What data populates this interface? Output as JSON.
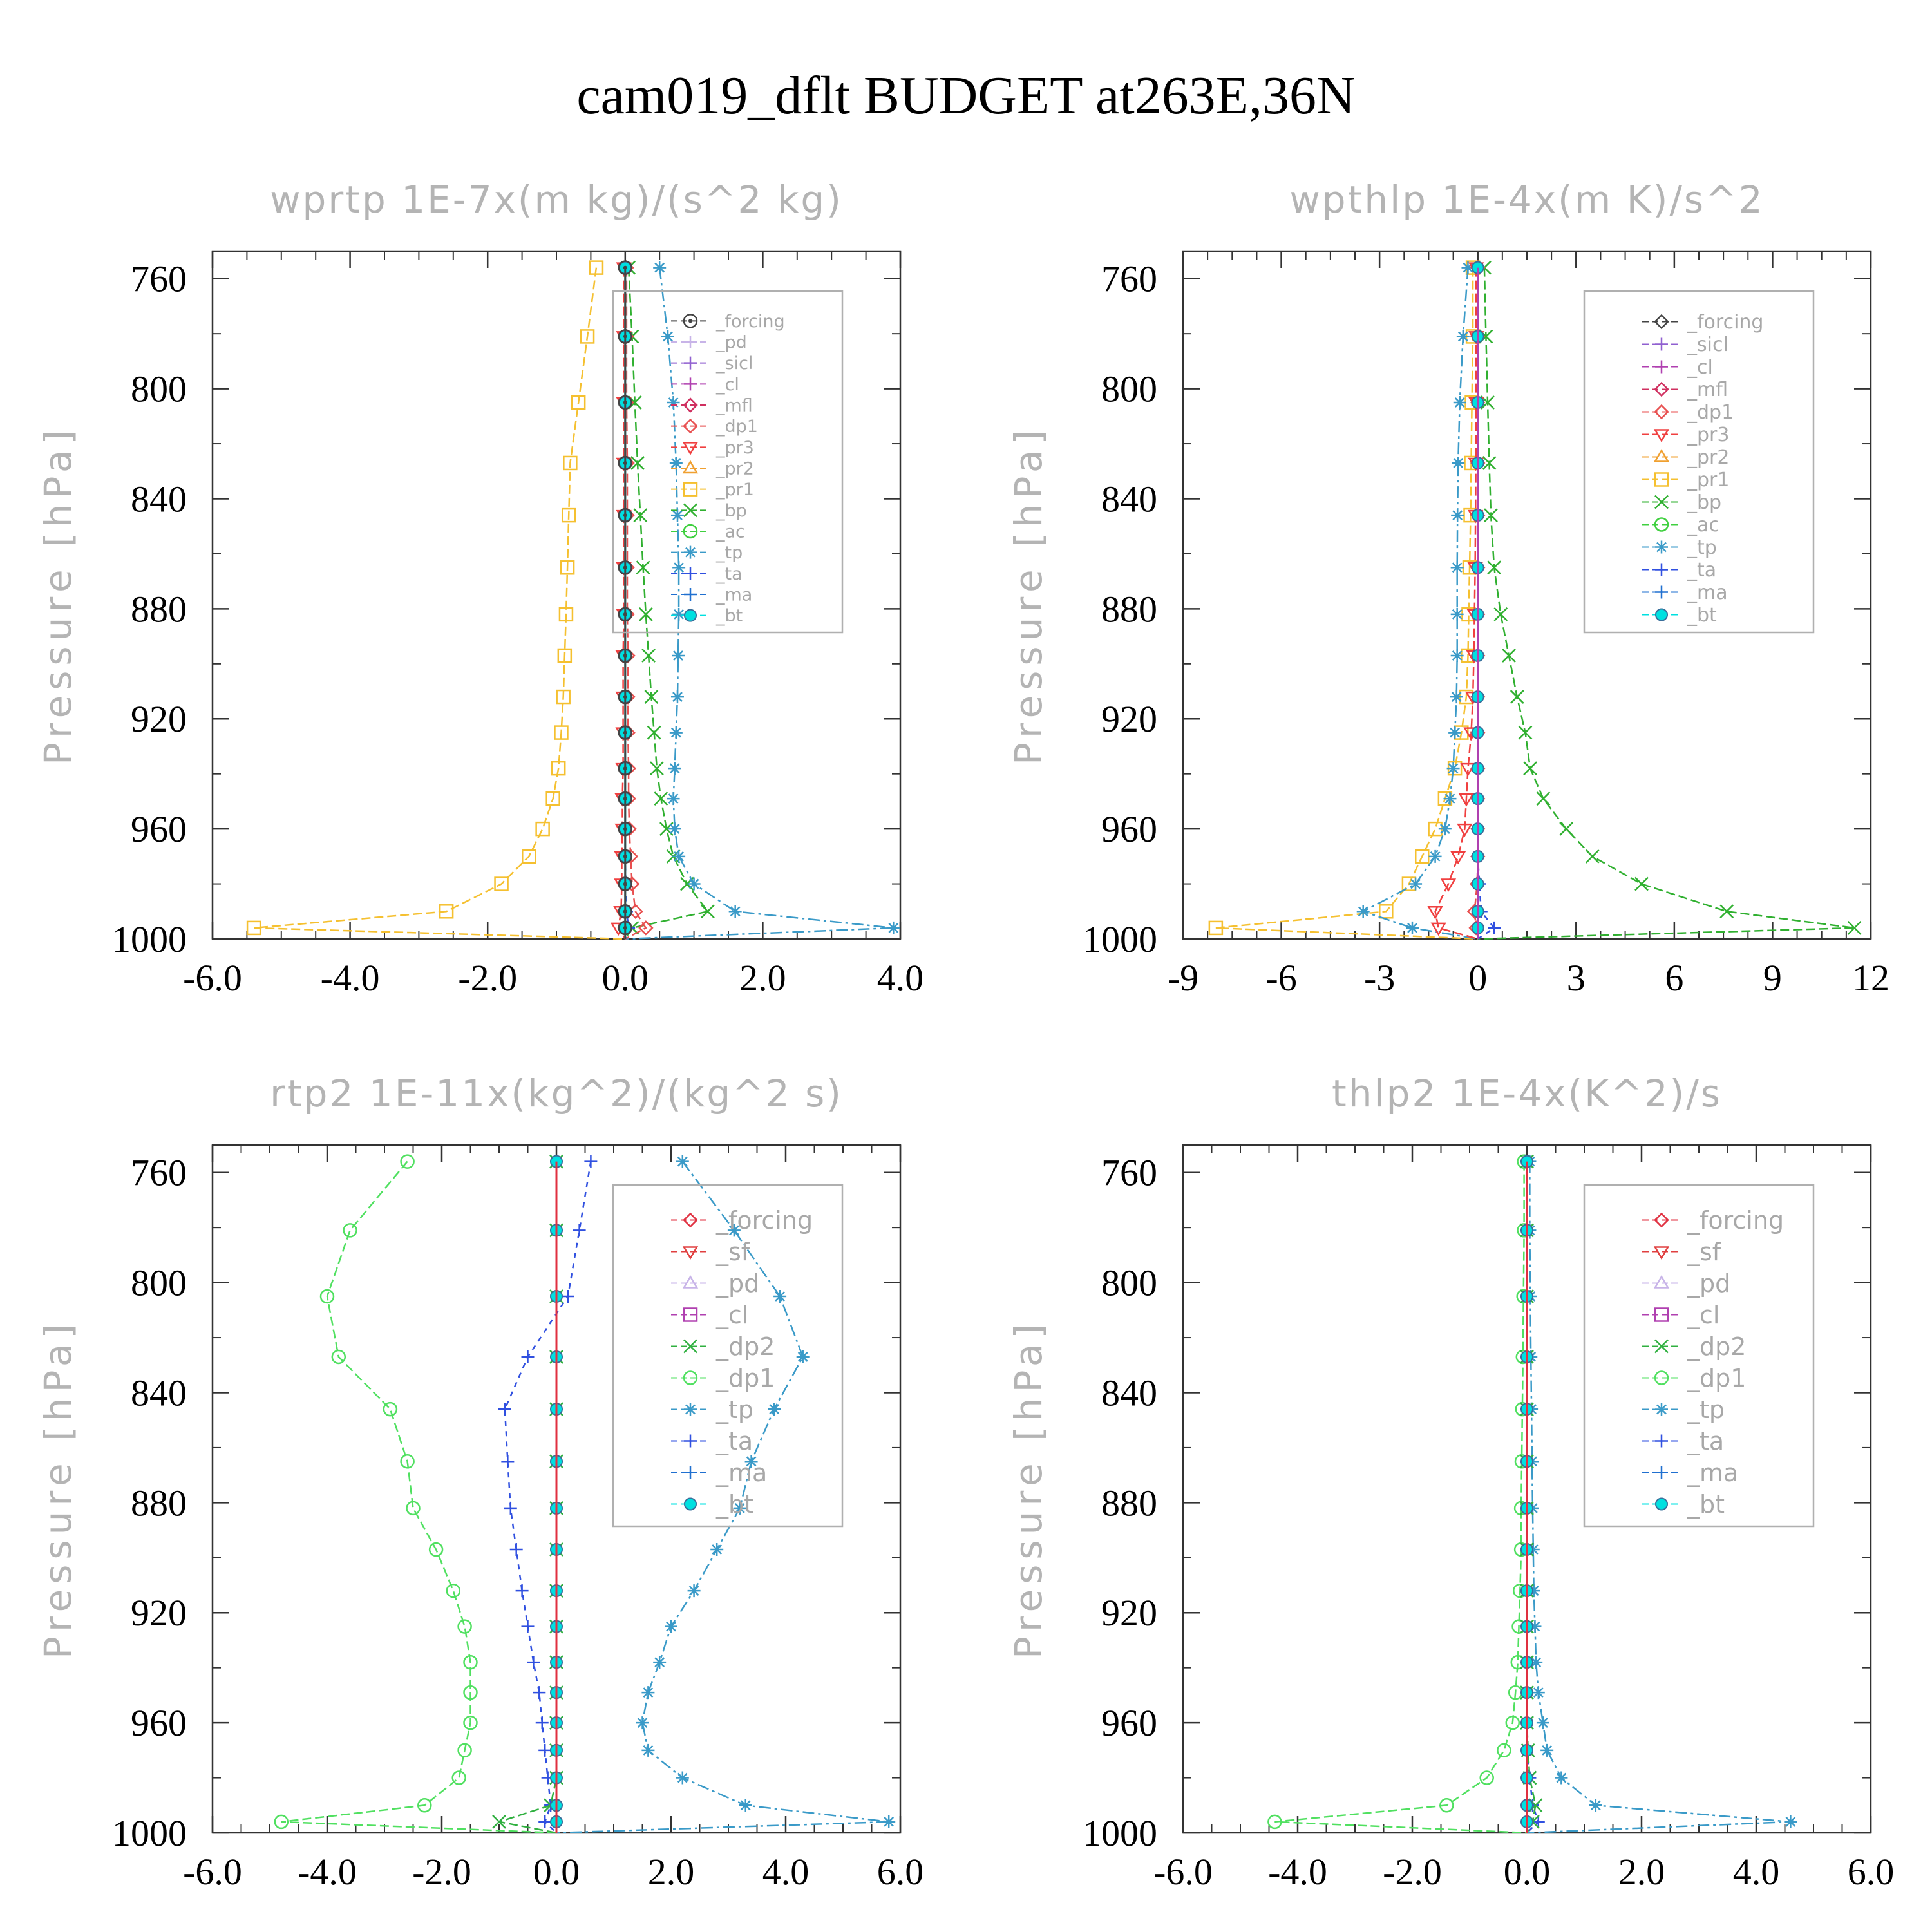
{
  "title": "cam019_dflt  BUDGET at263E,36N",
  "colors": {
    "forcing": "#444444",
    "pd": "#c8b4e8",
    "sicl": "#9060d0",
    "cl": "#b040b0",
    "mfl": "#d03060",
    "dp1": "#e85050",
    "pr3": "#f04040",
    "pr2": "#f0a030",
    "pr1": "#f5c030",
    "bp": "#30b030",
    "ac": "#40d040",
    "tp": "#3a9ac8",
    "ta": "#3050e0",
    "ma": "#2070d0",
    "bt": "#00e0e0",
    "sf": "#e04040",
    "dp2": "#30b040",
    "rtp2_dp1": "#50e060",
    "rtp2_forcing": "#e03040"
  },
  "chart_data": [
    {
      "type": "line",
      "title": "wprtp  1E-7x(m kg)/(s^2 kg)",
      "ylabel": "Pressure [hPa]",
      "xlim": [
        -6,
        4
      ],
      "ylim": [
        1000,
        750
      ],
      "xticks": [
        "-6.0",
        "-4.0",
        "-2.0",
        "0.0",
        "2.0",
        "4.0"
      ],
      "xtick_values": [
        -6,
        -4,
        -2,
        0,
        2,
        4
      ],
      "yticks": [
        "760",
        "800",
        "840",
        "880",
        "920",
        "960",
        "1000"
      ],
      "ytick_values": [
        760,
        800,
        840,
        880,
        920,
        960,
        1000
      ],
      "levels": [
        756,
        781,
        805,
        827,
        846,
        865,
        882,
        897,
        912,
        925,
        938,
        949,
        960,
        970,
        980,
        990,
        996
      ],
      "legend_labels": [
        "_forcing",
        "_pd",
        "_sicl",
        "_cl",
        "_mfl",
        "_dp1",
        "_pr3",
        "_pr2",
        "_pr1",
        "_bp",
        "_ac",
        "_tp",
        "_ta",
        "_ma",
        "_bt"
      ],
      "series": [
        {
          "name": "_pr1",
          "color": "pr1",
          "marker": "square",
          "dash": "14,6",
          "x": [
            -0.42,
            -0.55,
            -0.68,
            -0.8,
            -0.82,
            -0.84,
            -0.86,
            -0.88,
            -0.9,
            -0.93,
            -0.97,
            -1.05,
            -1.2,
            -1.4,
            -1.8,
            -2.6,
            -5.4
          ]
        },
        {
          "name": "_bp",
          "color": "bp",
          "marker": "x",
          "dash": "14,6",
          "x": [
            0.05,
            0.1,
            0.14,
            0.18,
            0.22,
            0.26,
            0.3,
            0.34,
            0.38,
            0.42,
            0.46,
            0.52,
            0.6,
            0.7,
            0.9,
            1.2,
            0.1
          ]
        },
        {
          "name": "_tp",
          "color": "tp",
          "marker": "star",
          "dash": "18,6,4,6",
          "x": [
            0.5,
            0.62,
            0.7,
            0.74,
            0.76,
            0.78,
            0.78,
            0.77,
            0.76,
            0.74,
            0.72,
            0.7,
            0.72,
            0.78,
            1.0,
            1.6,
            3.9
          ]
        },
        {
          "name": "_dp1",
          "color": "dp1",
          "marker": "diamond",
          "dash": "14,6",
          "x": [
            0.02,
            0.02,
            0.02,
            0.03,
            0.03,
            0.03,
            0.03,
            0.04,
            0.04,
            0.04,
            0.05,
            0.05,
            0.06,
            0.08,
            0.1,
            0.15,
            0.3
          ]
        },
        {
          "name": "_pr3",
          "color": "pr3",
          "marker": "triangledown",
          "dash": "14,6",
          "x": [
            -0.02,
            -0.02,
            -0.02,
            -0.02,
            -0.02,
            -0.02,
            -0.02,
            -0.03,
            -0.03,
            -0.03,
            -0.03,
            -0.04,
            -0.04,
            -0.05,
            -0.05,
            -0.06,
            -0.1
          ]
        },
        {
          "name": "_ta",
          "color": "ta",
          "marker": "plus",
          "dash": "8,8",
          "x": [
            0,
            0,
            0,
            0,
            0,
            0,
            0,
            0,
            0,
            0,
            0,
            0,
            0,
            0,
            0.01,
            0.02,
            0.05
          ]
        },
        {
          "name": "_bt",
          "color": "bt",
          "marker": "dot",
          "dash": "",
          "x": [
            0,
            0,
            0,
            0,
            0,
            0,
            0,
            0,
            0,
            0,
            0,
            0,
            0,
            0,
            0,
            0,
            0
          ]
        },
        {
          "name": "_forcing",
          "color": "forcing",
          "marker": "circledot",
          "dash": "",
          "x": [
            0,
            0,
            0,
            0,
            0,
            0,
            0,
            0,
            0,
            0,
            0,
            0,
            0,
            0,
            0,
            0,
            0
          ]
        }
      ]
    },
    {
      "type": "line",
      "title": "wpthlp  1E-4x(m K)/s^2",
      "ylabel": "Pressure [hPa]",
      "xlim": [
        -9,
        12
      ],
      "ylim": [
        1000,
        750
      ],
      "xticks": [
        "-9",
        "-6",
        "-3",
        "0",
        "3",
        "6",
        "9",
        "12"
      ],
      "xtick_values": [
        -9,
        -6,
        -3,
        0,
        3,
        6,
        9,
        12
      ],
      "yticks": [
        "760",
        "800",
        "840",
        "880",
        "920",
        "960",
        "1000"
      ],
      "ytick_values": [
        760,
        800,
        840,
        880,
        920,
        960,
        1000
      ],
      "levels": [
        756,
        781,
        805,
        827,
        846,
        865,
        882,
        897,
        912,
        925,
        938,
        949,
        960,
        970,
        980,
        990,
        996
      ],
      "legend_labels": [
        "_forcing",
        "_sicl",
        "_cl",
        "_mfl",
        "_dp1",
        "_pr3",
        "_pr2",
        "_pr1",
        "_bp",
        "_ac",
        "_tp",
        "_ta",
        "_ma",
        "_bt"
      ],
      "series": [
        {
          "name": "_pr1",
          "color": "pr1",
          "marker": "square",
          "dash": "14,6",
          "x": [
            -0.15,
            -0.15,
            -0.18,
            -0.2,
            -0.22,
            -0.25,
            -0.28,
            -0.3,
            -0.35,
            -0.5,
            -0.7,
            -1.0,
            -1.3,
            -1.7,
            -2.1,
            -2.8,
            -8.0
          ]
        },
        {
          "name": "_bp",
          "color": "bp",
          "marker": "x",
          "dash": "14,6",
          "x": [
            0.2,
            0.25,
            0.3,
            0.35,
            0.4,
            0.5,
            0.7,
            0.95,
            1.2,
            1.45,
            1.6,
            2.0,
            2.7,
            3.5,
            5.0,
            7.6,
            11.5
          ]
        },
        {
          "name": "_tp",
          "color": "tp",
          "marker": "star",
          "dash": "18,6,4,6",
          "x": [
            -0.3,
            -0.45,
            -0.55,
            -0.6,
            -0.62,
            -0.63,
            -0.63,
            -0.63,
            -0.65,
            -0.7,
            -0.75,
            -0.85,
            -1.0,
            -1.3,
            -1.9,
            -3.5,
            -2.0
          ]
        },
        {
          "name": "_pr3",
          "color": "pr3",
          "marker": "triangledown",
          "dash": "14,6",
          "x": [
            -0.05,
            -0.05,
            -0.05,
            -0.06,
            -0.07,
            -0.08,
            -0.1,
            -0.12,
            -0.15,
            -0.2,
            -0.3,
            -0.35,
            -0.4,
            -0.6,
            -0.9,
            -1.3,
            -1.2
          ]
        },
        {
          "name": "_dp1",
          "color": "dp1",
          "marker": "diamond",
          "dash": "14,6",
          "x": [
            0,
            0,
            0,
            0,
            0,
            0,
            0,
            0,
            0,
            0,
            0,
            0,
            0,
            0,
            -0.02,
            -0.1,
            -0.05
          ]
        },
        {
          "name": "_ta",
          "color": "ta",
          "marker": "plus",
          "dash": "8,8",
          "x": [
            0,
            0,
            0,
            0,
            0,
            0,
            0,
            0,
            0,
            0,
            0,
            0,
            0,
            0,
            0.05,
            0.1,
            0.5
          ]
        },
        {
          "name": "_bt",
          "color": "bt",
          "marker": "dot",
          "dash": "",
          "x": [
            0,
            0,
            0,
            0,
            0,
            0,
            0,
            0,
            0,
            0,
            0,
            0,
            0,
            0,
            0,
            0,
            0
          ]
        },
        {
          "name": "_cl",
          "color": "cl",
          "marker": "none",
          "dash": "",
          "x": [
            0,
            0,
            0,
            0,
            0,
            0,
            0,
            0,
            0,
            0,
            0,
            0,
            0,
            0,
            0,
            0,
            0
          ]
        }
      ]
    },
    {
      "type": "line",
      "title": "rtp2  1E-11x(kg^2)/(kg^2 s)",
      "ylabel": "Pressure [hPa]",
      "xlim": [
        -6,
        6
      ],
      "ylim": [
        1000,
        750
      ],
      "xticks": [
        "-6.0",
        "-4.0",
        "-2.0",
        "0.0",
        "2.0",
        "4.0",
        "6.0"
      ],
      "xtick_values": [
        -6,
        -4,
        -2,
        0,
        2,
        4,
        6
      ],
      "yticks": [
        "760",
        "800",
        "840",
        "880",
        "920",
        "960",
        "1000"
      ],
      "ytick_values": [
        760,
        800,
        840,
        880,
        920,
        960,
        1000
      ],
      "levels": [
        756,
        781,
        805,
        827,
        846,
        865,
        882,
        897,
        912,
        925,
        938,
        949,
        960,
        970,
        980,
        990,
        996
      ],
      "legend_labels": [
        "_forcing",
        "_sf",
        "_pd",
        "_cl",
        "_dp2",
        "_dp1",
        "_tp",
        "_ta",
        "_ma",
        "_bt"
      ],
      "series": [
        {
          "name": "_dp1",
          "color": "rtp2_dp1",
          "marker": "circle",
          "dash": "14,6",
          "x": [
            -2.6,
            -3.6,
            -4.0,
            -3.8,
            -2.9,
            -2.6,
            -2.5,
            -2.1,
            -1.8,
            -1.6,
            -1.5,
            -1.5,
            -1.5,
            -1.6,
            -1.7,
            -2.3,
            -4.8
          ]
        },
        {
          "name": "_tp",
          "color": "tp",
          "marker": "star",
          "dash": "18,6,4,6",
          "x": [
            2.2,
            3.1,
            3.9,
            4.3,
            3.8,
            3.4,
            3.2,
            2.8,
            2.4,
            2.0,
            1.8,
            1.6,
            1.5,
            1.6,
            2.2,
            3.3,
            5.8
          ]
        },
        {
          "name": "_ta",
          "color": "ta",
          "marker": "plus",
          "dash": "8,8",
          "x": [
            0.6,
            0.4,
            0.2,
            -0.5,
            -0.9,
            -0.85,
            -0.8,
            -0.7,
            -0.6,
            -0.5,
            -0.4,
            -0.3,
            -0.25,
            -0.2,
            -0.15,
            -0.1,
            -0.2
          ]
        },
        {
          "name": "_dp2",
          "color": "dp2",
          "marker": "x",
          "dash": "14,6",
          "x": [
            0,
            0,
            0,
            0,
            0,
            0,
            0,
            0,
            0,
            0,
            0,
            0,
            0,
            0,
            0,
            -0.1,
            -1.0
          ]
        },
        {
          "name": "_bt",
          "color": "bt",
          "marker": "dot",
          "dash": "",
          "x": [
            0,
            0,
            0,
            0,
            0,
            0,
            0,
            0,
            0,
            0,
            0,
            0,
            0,
            0,
            0,
            0,
            0
          ]
        },
        {
          "name": "_forcing",
          "color": "rtp2_forcing",
          "marker": "none",
          "dash": "",
          "x": [
            0,
            0,
            0,
            0,
            0,
            0,
            0,
            0,
            0,
            0,
            0,
            0,
            0,
            0,
            0,
            0,
            0
          ]
        }
      ]
    },
    {
      "type": "line",
      "title": "thlp2  1E-4x(K^2)/s",
      "ylabel": "Pressure [hPa]",
      "xlim": [
        -6,
        6
      ],
      "ylim": [
        1000,
        750
      ],
      "xticks": [
        "-6.0",
        "-4.0",
        "-2.0",
        "0.0",
        "2.0",
        "4.0",
        "6.0"
      ],
      "xtick_values": [
        -6,
        -4,
        -2,
        0,
        2,
        4,
        6
      ],
      "yticks": [
        "760",
        "800",
        "840",
        "880",
        "920",
        "960",
        "1000"
      ],
      "ytick_values": [
        760,
        800,
        840,
        880,
        920,
        960,
        1000
      ],
      "levels": [
        756,
        781,
        805,
        827,
        846,
        865,
        882,
        897,
        912,
        925,
        938,
        949,
        960,
        970,
        980,
        990,
        996
      ],
      "legend_labels": [
        "_forcing",
        "_sf",
        "_pd",
        "_cl",
        "_dp2",
        "_dp1",
        "_tp",
        "_ta",
        "_ma",
        "_bt"
      ],
      "series": [
        {
          "name": "_dp1",
          "color": "rtp2_dp1",
          "marker": "circle",
          "dash": "14,6",
          "x": [
            -0.05,
            -0.05,
            -0.06,
            -0.07,
            -0.08,
            -0.09,
            -0.1,
            -0.1,
            -0.12,
            -0.14,
            -0.16,
            -0.2,
            -0.25,
            -0.4,
            -0.7,
            -1.4,
            -4.4
          ]
        },
        {
          "name": "_tp",
          "color": "tp",
          "marker": "star",
          "dash": "18,6,4,6",
          "x": [
            0.05,
            0.05,
            0.06,
            0.07,
            0.08,
            0.09,
            0.1,
            0.11,
            0.12,
            0.14,
            0.16,
            0.2,
            0.28,
            0.35,
            0.6,
            1.2,
            4.6
          ]
        },
        {
          "name": "_ta",
          "color": "ta",
          "marker": "plus",
          "dash": "8,8",
          "x": [
            0,
            0,
            0,
            0,
            0,
            0,
            0,
            0,
            0,
            0,
            0,
            0,
            0,
            0,
            0.05,
            0.1,
            0.2
          ]
        },
        {
          "name": "_dp2",
          "color": "dp2",
          "marker": "x",
          "dash": "14,6",
          "x": [
            0,
            0,
            0,
            0,
            0,
            0,
            0,
            0,
            0,
            0,
            0,
            0,
            0,
            0.02,
            0.05,
            0.15,
            0.1
          ]
        },
        {
          "name": "_bt",
          "color": "bt",
          "marker": "dot",
          "dash": "",
          "x": [
            0,
            0,
            0,
            0,
            0,
            0,
            0,
            0,
            0,
            0,
            0,
            0,
            0,
            0,
            0,
            0,
            0
          ]
        },
        {
          "name": "_forcing",
          "color": "rtp2_forcing",
          "marker": "none",
          "dash": "",
          "x": [
            0,
            0,
            0,
            0,
            0,
            0,
            0,
            0,
            0,
            0,
            0,
            0,
            0,
            0,
            0,
            0,
            0
          ]
        }
      ]
    }
  ]
}
